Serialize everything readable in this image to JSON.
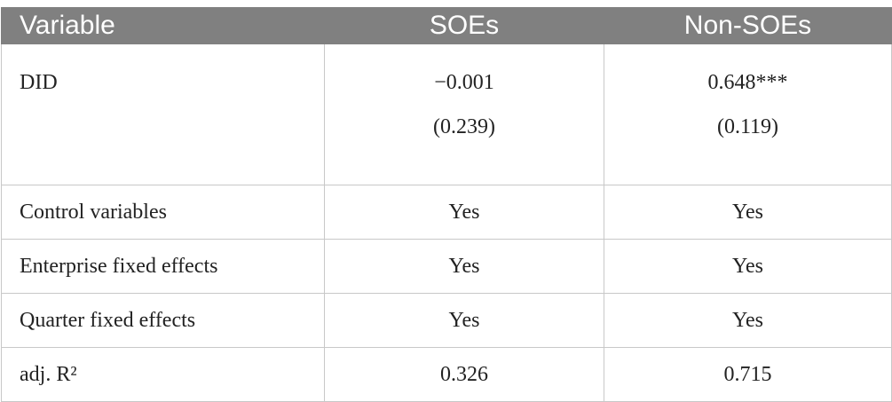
{
  "table": {
    "header": [
      "Variable",
      "SOEs",
      "Non-SOEs"
    ],
    "rows": [
      {
        "label": "DID",
        "cells": [
          [
            "−0.001",
            "(0.239)"
          ],
          [
            "0.648***",
            "(0.119)"
          ]
        ]
      },
      {
        "label": "Control variables",
        "cells": [
          [
            "Yes"
          ],
          [
            "Yes"
          ]
        ]
      },
      {
        "label": "Enterprise fixed effects",
        "cells": [
          [
            "Yes"
          ],
          [
            "Yes"
          ]
        ]
      },
      {
        "label": "Quarter fixed effects",
        "cells": [
          [
            "Yes"
          ],
          [
            "Yes"
          ]
        ]
      },
      {
        "label": "adj. R²",
        "cells": [
          [
            "0.326"
          ],
          [
            "0.715"
          ]
        ]
      }
    ]
  }
}
